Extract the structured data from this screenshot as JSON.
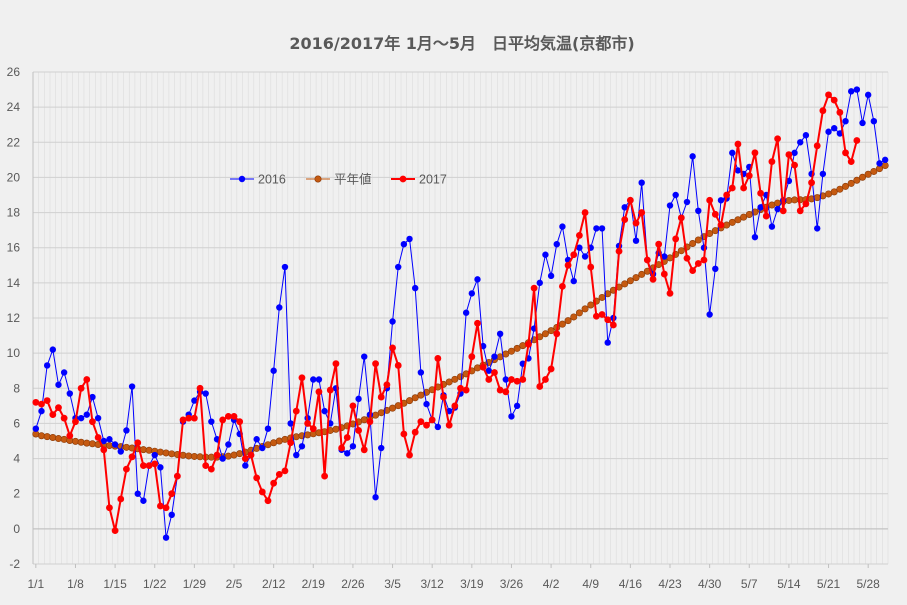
{
  "chart_data": {
    "type": "line",
    "title": "2016/2017年 1月～5月　日平均気温(京都市)",
    "xlabel": "",
    "ylabel": "",
    "ylim": [
      -2,
      26
    ],
    "grid": true,
    "legend_position": "upper-left inside plot",
    "x_tick_labels": [
      "1/1",
      "1/8",
      "1/15",
      "1/22",
      "1/29",
      "2/5",
      "2/12",
      "2/19",
      "2/26",
      "3/5",
      "3/12",
      "3/19",
      "3/26",
      "4/2",
      "4/9",
      "4/16",
      "4/23",
      "4/30",
      "5/7",
      "5/14",
      "5/21",
      "5/28"
    ],
    "y_tick_labels": [
      "-2",
      "0",
      "2",
      "4",
      "6",
      "8",
      "10",
      "12",
      "14",
      "16",
      "18",
      "20",
      "22",
      "24",
      "26"
    ],
    "x_start": "1/1",
    "series": [
      {
        "name": "2016",
        "color": "#0000ff",
        "marker": "circle",
        "values": [
          5.7,
          6.7,
          9.3,
          10.2,
          8.2,
          8.9,
          7.7,
          6.3,
          6.3,
          6.5,
          7.5,
          6.3,
          5.0,
          5.1,
          4.8,
          4.4,
          5.6,
          8.1,
          2.0,
          1.6,
          3.6,
          4.2,
          3.5,
          -0.5,
          0.8,
          3.0,
          6.1,
          6.5,
          7.3,
          7.8,
          7.7,
          6.1,
          5.1,
          4.0,
          4.8,
          6.2,
          5.4,
          3.6,
          4.2,
          5.1,
          4.6,
          5.7,
          9.0,
          12.6,
          14.9,
          6.0,
          4.2,
          4.7,
          6.3,
          8.5,
          8.5,
          6.7,
          6.0,
          8.0,
          4.5,
          4.3,
          4.7,
          7.4,
          9.8,
          6.5,
          1.8,
          4.6,
          8.0,
          11.8,
          14.9,
          16.2,
          16.5,
          13.7,
          8.9,
          7.1,
          6.2,
          5.8,
          7.6,
          6.7,
          6.9,
          7.7,
          12.3,
          13.4,
          14.2,
          10.4,
          9.0,
          9.8,
          11.1,
          8.5,
          6.4,
          7.0,
          9.4,
          9.7,
          11.4,
          14.0,
          15.6,
          14.4,
          16.2,
          17.2,
          15.3,
          14.1,
          16.0,
          15.5,
          16.0,
          17.1,
          17.1,
          10.6,
          12.0,
          16.1,
          18.3,
          18.7,
          16.4,
          19.7,
          15.3,
          14.5,
          15.7,
          15.5,
          18.4,
          19.0,
          17.7,
          18.6,
          21.2,
          18.1,
          16.0,
          12.2,
          14.8,
          18.7,
          18.8,
          21.4,
          20.4,
          20.2,
          20.6,
          16.6,
          18.3,
          19.0,
          17.2,
          18.2,
          18.7,
          19.8,
          21.4,
          22.0,
          22.4,
          20.2,
          17.1,
          20.2,
          22.6,
          22.8,
          22.5,
          23.2,
          24.9,
          25.0,
          23.1,
          24.7,
          23.2,
          20.8,
          21.0
        ]
      },
      {
        "name": "平年値",
        "color": "#c55a11",
        "marker": "circle",
        "values": [
          5.4,
          5.3,
          5.25,
          5.2,
          5.14,
          5.09,
          5.03,
          4.98,
          4.93,
          4.88,
          4.84,
          4.8,
          4.77,
          4.74,
          4.71,
          4.68,
          4.64,
          4.6,
          4.56,
          4.51,
          4.47,
          4.42,
          4.37,
          4.32,
          4.27,
          4.23,
          4.19,
          4.15,
          4.12,
          4.1,
          4.08,
          4.08,
          4.08,
          4.1,
          4.14,
          4.2,
          4.28,
          4.37,
          4.47,
          4.58,
          4.69,
          4.79,
          4.9,
          5.0,
          5.09,
          5.17,
          5.24,
          5.3,
          5.35,
          5.41,
          5.47,
          5.53,
          5.6,
          5.67,
          5.76,
          5.86,
          5.97,
          6.09,
          6.21,
          6.34,
          6.47,
          6.61,
          6.74,
          6.87,
          7.01,
          7.15,
          7.3,
          7.46,
          7.61,
          7.77,
          7.92,
          8.07,
          8.22,
          8.36,
          8.51,
          8.66,
          8.82,
          8.99,
          9.16,
          9.32,
          9.47,
          9.63,
          9.79,
          9.95,
          10.11,
          10.27,
          10.43,
          10.59,
          10.76,
          10.93,
          11.1,
          11.28,
          11.46,
          11.65,
          11.85,
          12.06,
          12.29,
          12.52,
          12.74,
          12.96,
          13.17,
          13.38,
          13.58,
          13.76,
          13.94,
          14.12,
          14.3,
          14.48,
          14.66,
          14.85,
          15.04,
          15.22,
          15.42,
          15.62,
          15.83,
          16.04,
          16.24,
          16.44,
          16.63,
          16.81,
          16.97,
          17.13,
          17.29,
          17.44,
          17.59,
          17.74,
          17.89,
          18.03,
          18.17,
          18.3,
          18.43,
          18.54,
          18.63,
          18.69,
          18.72,
          18.73,
          18.74,
          18.78,
          18.85,
          18.95,
          19.06,
          19.18,
          19.33,
          19.49,
          19.66,
          19.84,
          20.01,
          20.18,
          20.34,
          20.5,
          20.68
        ]
      },
      {
        "name": "2017",
        "color": "#ff0000",
        "marker": "circle",
        "values": [
          7.2,
          7.1,
          7.3,
          6.5,
          6.9,
          6.3,
          5.3,
          6.1,
          8.0,
          8.5,
          6.1,
          5.2,
          4.5,
          1.2,
          -0.1,
          1.7,
          3.4,
          4.1,
          4.9,
          3.6,
          3.6,
          3.7,
          1.3,
          1.2,
          2.0,
          3.0,
          6.2,
          6.3,
          6.3,
          8.0,
          3.6,
          3.4,
          4.2,
          6.2,
          6.4,
          6.4,
          6.1,
          4.0,
          4.2,
          2.9,
          2.1,
          1.6,
          2.6,
          3.1,
          3.3,
          4.9,
          6.7,
          8.6,
          6.0,
          5.7,
          7.8,
          3.0,
          7.9,
          9.4,
          4.6,
          5.2,
          7.0,
          5.6,
          4.5,
          6.1,
          9.4,
          7.5,
          8.2,
          10.3,
          9.3,
          5.4,
          4.2,
          5.5,
          6.1,
          5.9,
          6.2,
          9.7,
          7.5,
          5.9,
          7.0,
          8.0,
          7.9,
          9.8,
          11.7,
          9.2,
          8.5,
          8.9,
          7.9,
          7.8,
          8.5,
          8.4,
          8.5,
          10.5,
          13.7,
          8.1,
          8.5,
          9.1,
          11.1,
          13.8,
          15.0,
          15.6,
          16.7,
          18.0,
          14.9,
          12.1,
          12.2,
          11.9,
          11.6,
          15.8,
          17.6,
          18.7,
          17.4,
          18.0,
          15.3,
          14.2,
          16.2,
          14.5,
          13.4,
          16.5,
          17.7,
          15.4,
          14.7,
          15.1,
          15.3,
          18.7,
          17.9,
          17.3,
          19.0,
          19.4,
          21.9,
          19.4,
          20.1,
          21.4,
          19.1,
          17.8,
          20.9,
          22.2,
          18.1,
          21.3,
          20.7,
          18.1,
          18.5,
          19.7,
          21.8,
          23.8,
          24.7,
          24.4,
          23.7,
          21.4,
          20.9,
          22.1
        ]
      }
    ]
  }
}
